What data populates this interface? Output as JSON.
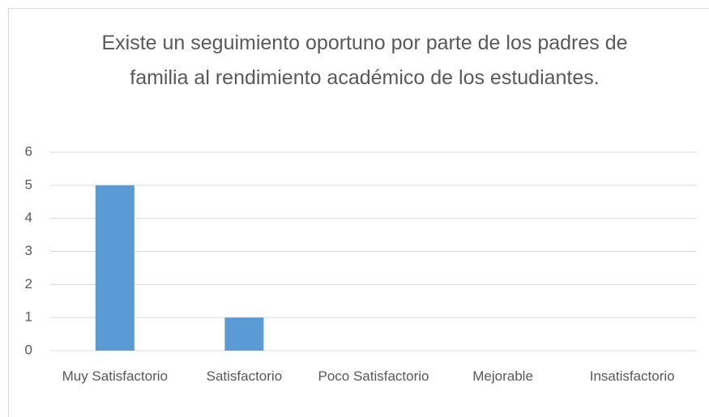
{
  "chart_data": {
    "type": "bar",
    "title": "Existe un seguimiento oportuno por parte de los padres de familia al rendimiento académico de los estudiantes.",
    "categories": [
      "Muy Satisfactorio",
      "Satisfactorio",
      "Poco Satisfactorio",
      "Mejorable",
      "Insatisfactorio"
    ],
    "values": [
      5,
      1,
      0,
      0,
      0
    ],
    "color": "#5b9bd5",
    "ylim": [
      0,
      6
    ],
    "yticks": [
      0,
      1,
      2,
      3,
      4,
      5,
      6
    ],
    "grid": true
  }
}
